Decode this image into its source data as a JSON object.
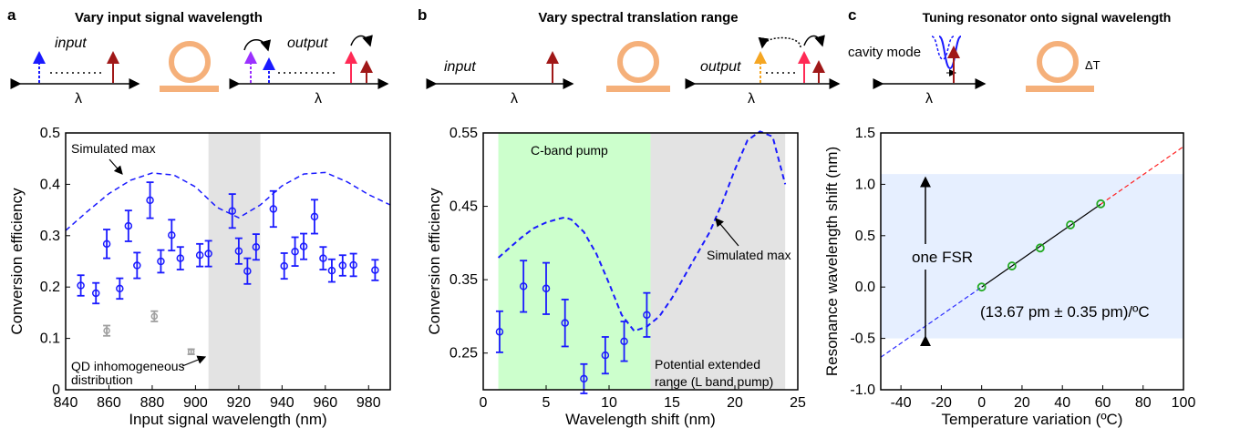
{
  "panels": {
    "a": {
      "label": "a",
      "title": "Vary input signal wavelength",
      "input": "input",
      "output": "output",
      "lambda": "λ"
    },
    "b": {
      "label": "b",
      "title": "Vary spectral translation range",
      "input": "input",
      "output": "output",
      "lambda": "λ"
    },
    "c": {
      "label": "c",
      "title": "Tuning resonator onto signal wavelength",
      "cavity": "cavity mode",
      "deltaT": "ΔT",
      "lambda": "λ"
    }
  },
  "colors": {
    "blue": "#1a1aff",
    "grey": "#a0a0a0",
    "shade": "#e3e3e3",
    "green": "#ccffcc",
    "lightblue": "#e6efff",
    "ring": "#f5b07a",
    "arrowRed": "#a01818",
    "arrowPink": "#ff2a55",
    "arrowOrange": "#f5a623",
    "arrowPurple": "#9b30ff",
    "fitRed": "#ff2020",
    "fitBlue": "#2a2aff",
    "dataGreen": "#22aa22"
  },
  "chart_data": [
    {
      "type": "scatter",
      "xlabel": "Input signal wavelength (nm)",
      "ylabel": "Conversion efficiency",
      "xlim": [
        840,
        990
      ],
      "ylim": [
        0,
        0.5
      ],
      "xticks": [
        840,
        860,
        880,
        900,
        920,
        940,
        960,
        980
      ],
      "yticks": [
        0,
        0.1,
        0.2,
        0.3,
        0.4,
        0.5
      ],
      "shaded_range": [
        906,
        930
      ],
      "annotations": [
        "Simulated max",
        "QD inhomogeneous distribution"
      ],
      "simulated": {
        "x": [
          840,
          850,
          860,
          870,
          880,
          890,
          900,
          910,
          920,
          930,
          940,
          950,
          960,
          970,
          980,
          990
        ],
        "y": [
          0.31,
          0.347,
          0.382,
          0.408,
          0.422,
          0.418,
          0.395,
          0.355,
          0.335,
          0.36,
          0.397,
          0.42,
          0.423,
          0.405,
          0.38,
          0.36
        ]
      },
      "series": [
        {
          "x": [
            847,
            854,
            859,
            865,
            869,
            873,
            879,
            884,
            889,
            893,
            902,
            906,
            917,
            920,
            924,
            928,
            936,
            941,
            946,
            950,
            955,
            959,
            963,
            968,
            973,
            983
          ],
          "y": [
            0.203,
            0.188,
            0.284,
            0.197,
            0.319,
            0.242,
            0.369,
            0.25,
            0.301,
            0.256,
            0.262,
            0.265,
            0.348,
            0.27,
            0.231,
            0.278,
            0.352,
            0.241,
            0.269,
            0.279,
            0.337,
            0.256,
            0.232,
            0.242,
            0.243,
            0.233
          ],
          "err": [
            0.02,
            0.02,
            0.028,
            0.02,
            0.03,
            0.025,
            0.035,
            0.022,
            0.03,
            0.022,
            0.022,
            0.025,
            0.033,
            0.025,
            0.025,
            0.025,
            0.035,
            0.025,
            0.028,
            0.025,
            0.033,
            0.022,
            0.022,
            0.02,
            0.022,
            0.02
          ]
        },
        {
          "x": [
            859,
            881,
            898
          ],
          "y": [
            0.115,
            0.143,
            0.074
          ],
          "err": [
            0.01,
            0.01,
            0.005
          ]
        }
      ]
    },
    {
      "type": "scatter",
      "xlabel": "Wavelength shift (nm)",
      "ylabel": "Conversion efficiency",
      "xlim": [
        0,
        25
      ],
      "ylim": [
        0.2,
        0.55
      ],
      "xticks": [
        0,
        5,
        10,
        15,
        20,
        25
      ],
      "yticks": [
        0.25,
        0.35,
        0.45,
        0.55
      ],
      "green_range": [
        1.2,
        13.3
      ],
      "grey_range": [
        13.3,
        24
      ],
      "annotations": [
        "C-band pump",
        "Simulated max",
        "Potential extended range (L band pump)"
      ],
      "simulated": {
        "x": [
          1.2,
          2,
          3,
          4,
          5,
          6,
          6.5,
          7,
          8,
          9,
          10,
          11,
          12,
          13,
          14,
          15,
          16,
          17,
          18,
          19,
          20,
          21,
          22,
          23,
          24
        ],
        "y": [
          0.38,
          0.392,
          0.407,
          0.42,
          0.428,
          0.433,
          0.435,
          0.432,
          0.415,
          0.385,
          0.345,
          0.302,
          0.28,
          0.286,
          0.3,
          0.325,
          0.355,
          0.385,
          0.415,
          0.455,
          0.5,
          0.54,
          0.552,
          0.545,
          0.48
        ]
      },
      "series": [
        {
          "x": [
            1.3,
            3.2,
            5,
            6.5,
            8,
            9.7,
            11.2,
            13
          ],
          "y": [
            0.279,
            0.341,
            0.338,
            0.291,
            0.215,
            0.247,
            0.266,
            0.302
          ],
          "err": [
            0.028,
            0.035,
            0.035,
            0.032,
            0.02,
            0.025,
            0.027,
            0.03
          ]
        }
      ]
    },
    {
      "type": "line",
      "xlabel": "Temperature variation (ºC)",
      "ylabel": "Resonance wavelength shift (nm)",
      "xlim": [
        -50,
        100
      ],
      "ylim": [
        -1.0,
        1.5
      ],
      "xticks": [
        -40,
        -20,
        0,
        20,
        40,
        60,
        80,
        100
      ],
      "yticks": [
        -1.0,
        -0.5,
        0.0,
        0.5,
        1.0,
        1.5
      ],
      "band": [
        -0.5,
        1.1
      ],
      "annotations": [
        "one FSR",
        "(13.67 pm ± 0.35 pm)/ºC"
      ],
      "fit": {
        "slope": 0.01367,
        "intercept": 0.0
      },
      "series": [
        {
          "x": [
            0,
            15,
            29,
            44,
            59
          ],
          "y": [
            0.0,
            0.205,
            0.38,
            0.605,
            0.81
          ]
        }
      ]
    }
  ]
}
